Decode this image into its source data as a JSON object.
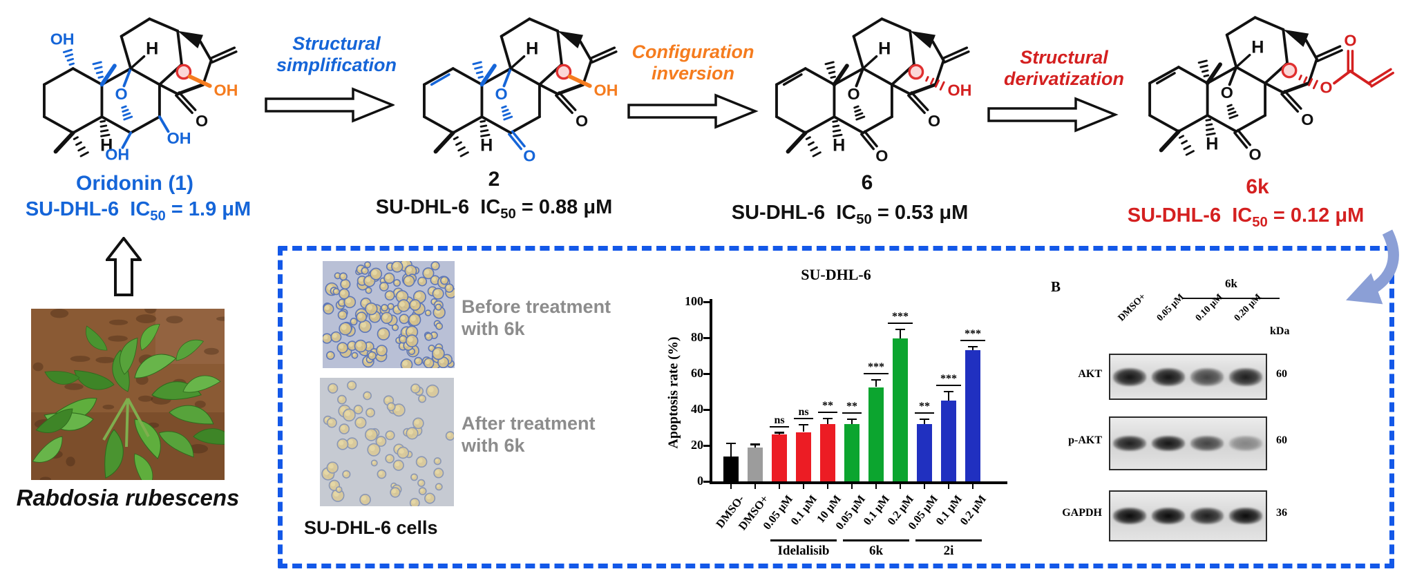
{
  "atom_labels": {
    "oh": "OH",
    "o": "O",
    "h": "H"
  },
  "compounds": [
    {
      "name": "Oridonin (1)",
      "cell_line": "SU-DHL-6",
      "ic_prefix": "IC",
      "ic_sub": "50",
      "ic_value": "= 1.9 μM",
      "color": "#1565d8"
    },
    {
      "name": "2",
      "cell_line": "SU-DHL-6",
      "ic_prefix": "IC",
      "ic_sub": "50",
      "ic_value": "= 0.88 μM",
      "color": "#111111"
    },
    {
      "name": "6",
      "cell_line": "SU-DHL-6",
      "ic_prefix": "IC",
      "ic_sub": "50",
      "ic_value": "= 0.53 μM",
      "color": "#111111"
    },
    {
      "name": "6k",
      "cell_line": "SU-DHL-6",
      "ic_prefix": "IC",
      "ic_sub": "50",
      "ic_value": "= 0.12 μM",
      "color": "#d42020"
    }
  ],
  "arrows": [
    {
      "label": "Structural simplification",
      "color": "#1565d8"
    },
    {
      "label": "Configuration inversion",
      "color": "#f57c1f"
    },
    {
      "label": "Structural derivatization",
      "color": "#d42020"
    }
  ],
  "plant": {
    "caption": "Rabdosia rubescens"
  },
  "cells_panel": {
    "before_label": "Before treatment with 6k",
    "after_label": "After treatment with 6k",
    "caption": "SU-DHL-6 cells"
  },
  "chart_data": {
    "type": "bar",
    "title": "SU-DHL-6",
    "xlabel": "",
    "ylabel": "Apoptosis rate (%)",
    "ylim": [
      0,
      100
    ],
    "yticks": [
      0,
      20,
      40,
      60,
      80,
      100
    ],
    "grid": false,
    "legend": "none",
    "categories": [
      "DMSO-",
      "DMSO+",
      "0.05 μM",
      "0.1 μM",
      "10 μM",
      "0.05 μM",
      "0.1 μM",
      "0.2 μM",
      "0.05 μM",
      "0.1 μM",
      "0.2 μM"
    ],
    "values": [
      14,
      19,
      26,
      27.5,
      32,
      32,
      52.5,
      79.5,
      32,
      45,
      73
    ],
    "errors": [
      7,
      1.5,
      1,
      4,
      3,
      2.5,
      4,
      5,
      2.5,
      5,
      2
    ],
    "significance": [
      "",
      "",
      "ns",
      "ns",
      "**",
      "**",
      "***",
      "***",
      "**",
      "***",
      "***"
    ],
    "bar_colors": [
      "#000000",
      "#9c9c9c",
      "#ec1c24",
      "#ec1c24",
      "#ec1c24",
      "#0ca52f",
      "#0ca52f",
      "#0ca52f",
      "#2030c0",
      "#2030c0",
      "#2030c0"
    ],
    "groups": [
      {
        "label": "Idelalisib",
        "span": [
          2,
          4
        ]
      },
      {
        "label": "6k",
        "span": [
          5,
          7
        ]
      },
      {
        "label": "2i",
        "span": [
          8,
          10
        ]
      }
    ]
  },
  "blot": {
    "panel_label": "B",
    "group_label": "6k",
    "lanes": [
      "DMSO+",
      "0.05 μM",
      "0.10 μM",
      "0.20 μM"
    ],
    "unit_label": "kDa",
    "rows": [
      {
        "protein": "AKT",
        "kda": "60"
      },
      {
        "protein": "p-AKT",
        "kda": "60"
      },
      {
        "protein": "GAPDH",
        "kda": "36"
      }
    ]
  },
  "colors": {
    "dashed_border": "#1358e8",
    "curved_arrow": "#8b9fd6"
  }
}
